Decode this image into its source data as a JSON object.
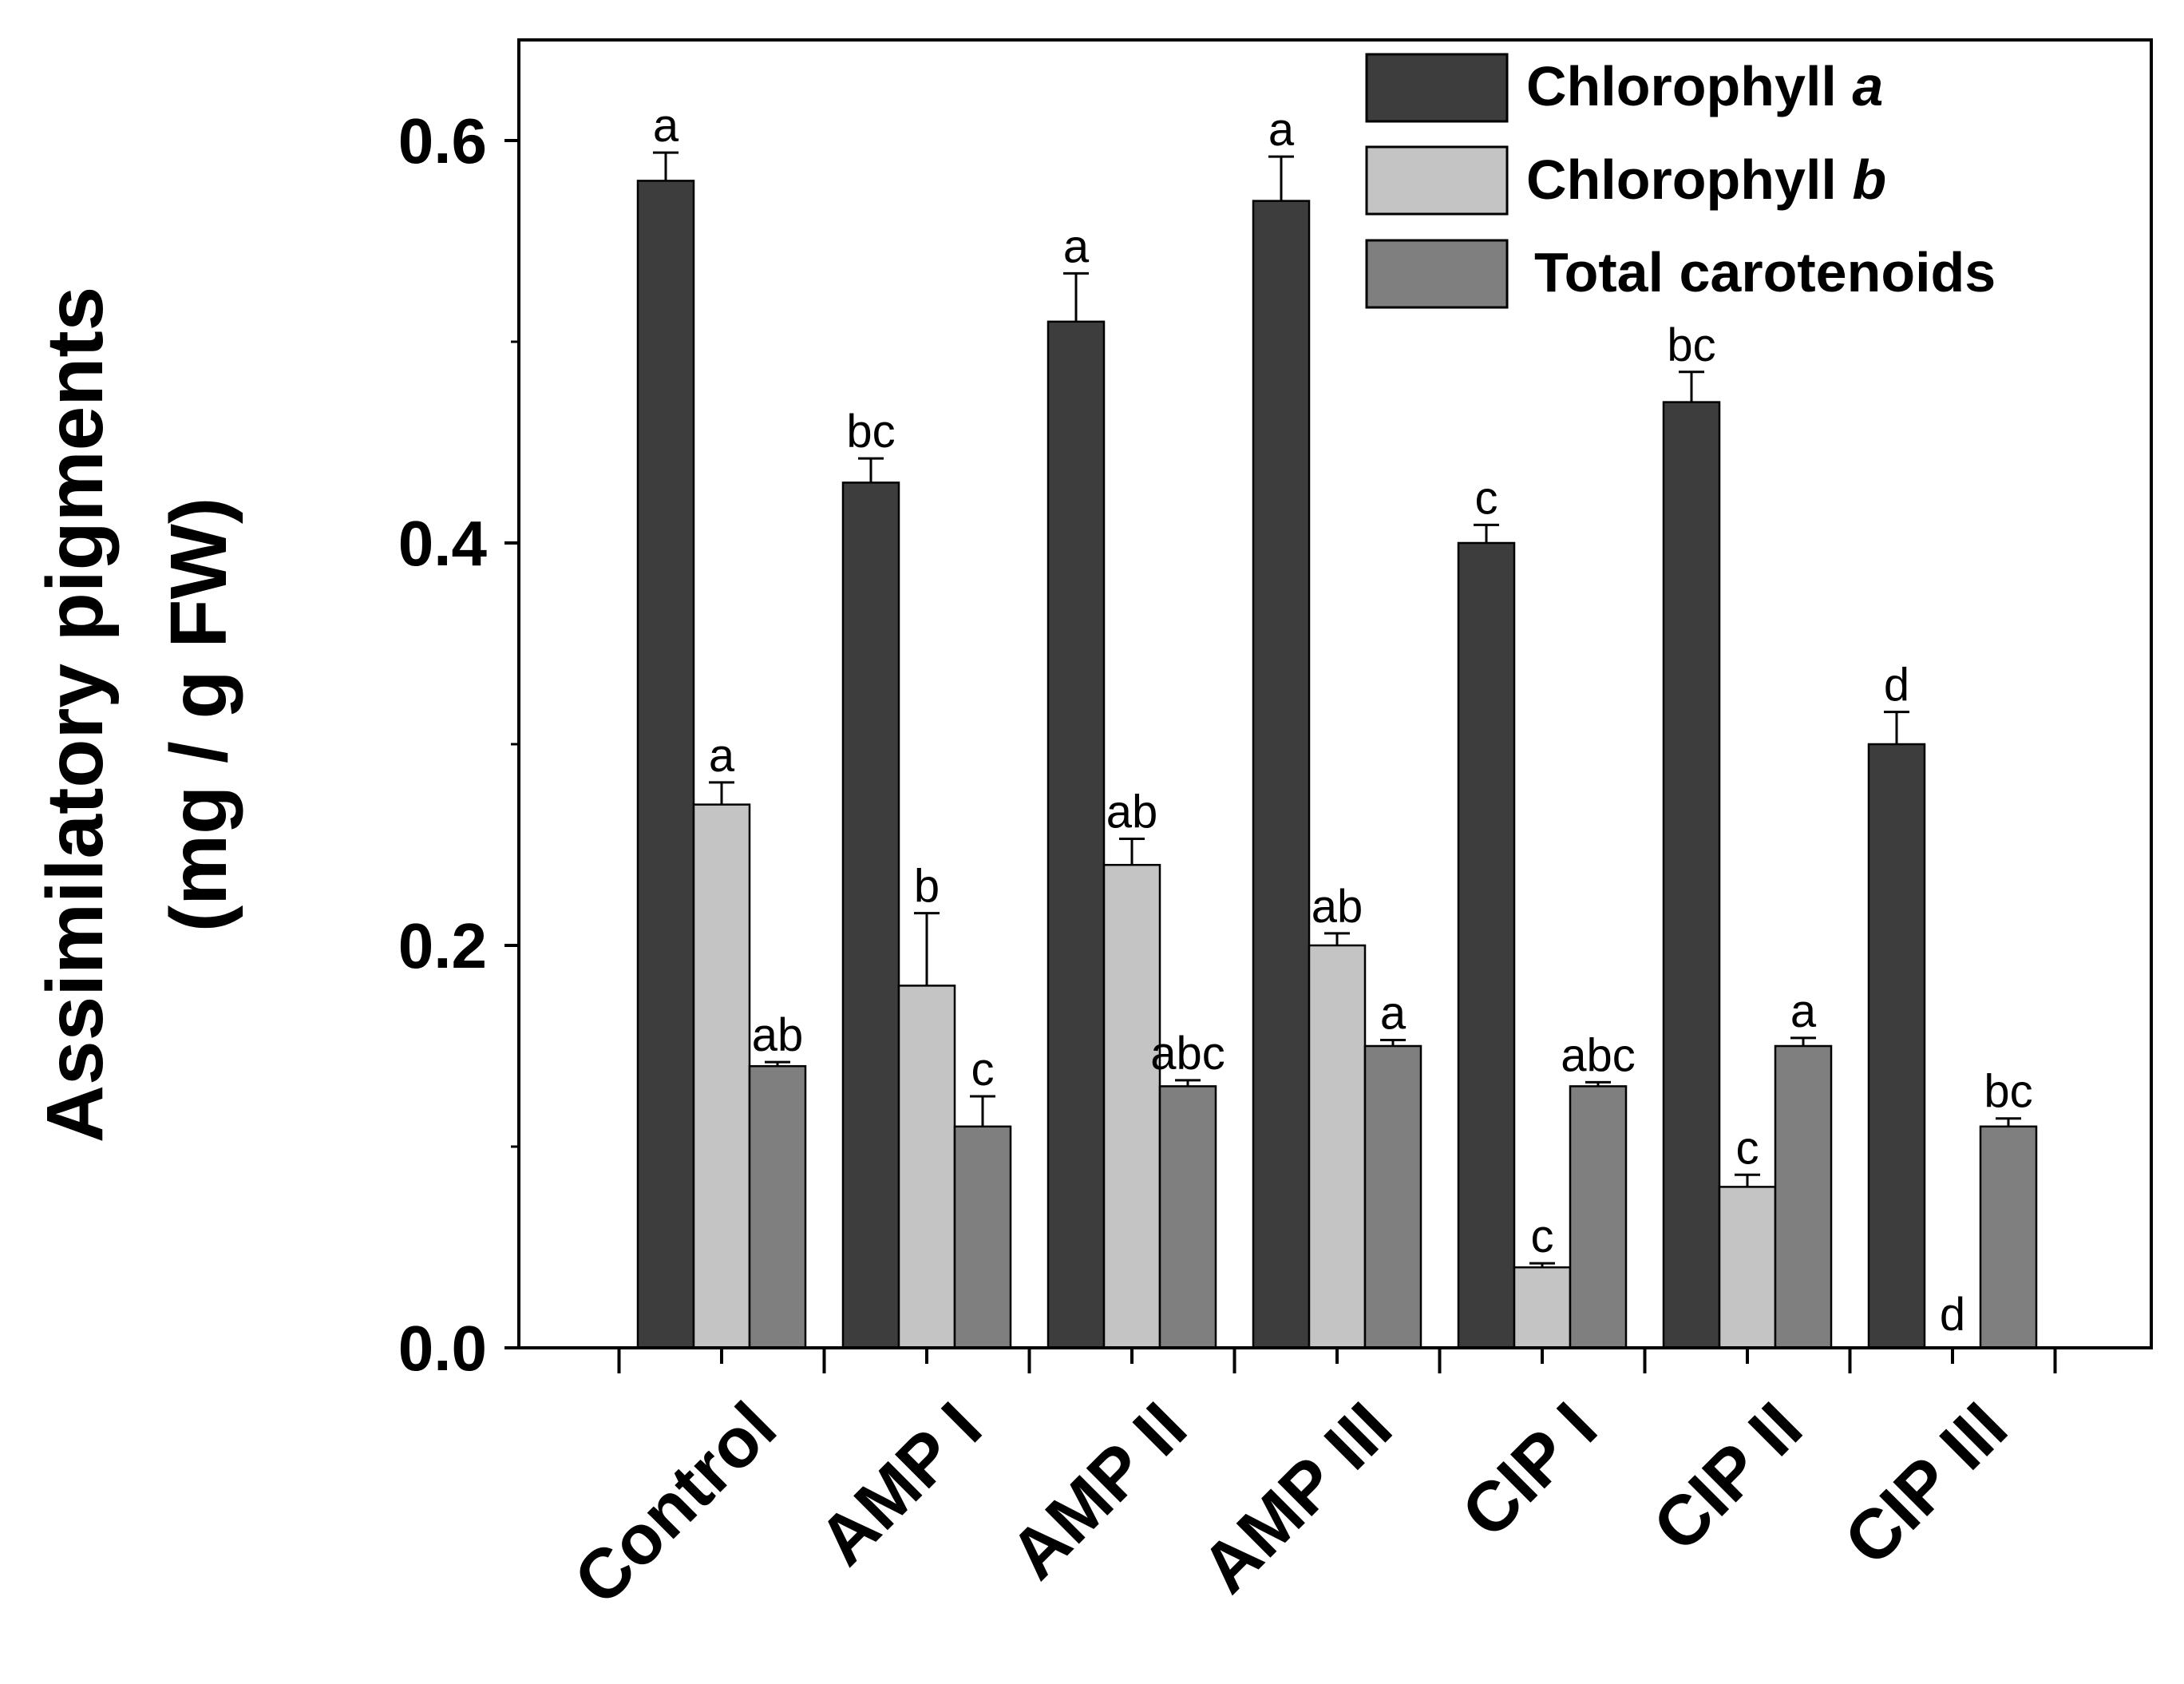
{
  "chart_data": {
    "type": "bar",
    "ylabel_line1": "Assimilatory pigments",
    "ylabel_line2": "(mg / g FW)",
    "xlabel": "",
    "ylim": [
      0,
      0.65
    ],
    "yticks": [
      0.0,
      0.2,
      0.4,
      0.6
    ],
    "ytick_labels": [
      "0.0",
      "0.2",
      "0.4",
      "0.6"
    ],
    "categories": [
      "Control",
      "AMP I",
      "AMP II",
      "AMP III",
      "CIP I",
      "CIP II",
      "CIP III"
    ],
    "series": [
      {
        "name": "Chlorophyll a",
        "legend_main": "Chlorophyll ",
        "legend_italic": "a",
        "color": "#3d3d3d",
        "values": [
          0.58,
          0.43,
          0.51,
          0.57,
          0.4,
          0.47,
          0.3
        ],
        "errors": [
          0.014,
          0.012,
          0.024,
          0.022,
          0.009,
          0.015,
          0.016
        ],
        "labels": [
          "a",
          "bc",
          "a",
          "a",
          "c",
          "bc",
          "d"
        ]
      },
      {
        "name": "Chlorophyll b",
        "legend_main": "Chlorophyll ",
        "legend_italic": "b",
        "color": "#c4c4c4",
        "values": [
          0.27,
          0.18,
          0.24,
          0.2,
          0.04,
          0.08,
          0.0
        ],
        "errors": [
          0.011,
          0.036,
          0.013,
          0.006,
          0.002,
          0.006,
          0.0
        ],
        "labels": [
          "a",
          "b",
          "ab",
          "ab",
          "c",
          "c",
          "d"
        ]
      },
      {
        "name": "Total carotenoids",
        "legend_main": "Total carotenoids",
        "legend_italic": "",
        "color": "#7f7f7f",
        "values": [
          0.14,
          0.11,
          0.13,
          0.15,
          0.13,
          0.15,
          0.11
        ],
        "errors": [
          0.002,
          0.015,
          0.003,
          0.003,
          0.002,
          0.004,
          0.004
        ],
        "labels": [
          "ab",
          "c",
          "abc",
          "a",
          "abc",
          "a",
          "bc"
        ]
      }
    ],
    "legend_position": "top-right",
    "grid": false
  }
}
